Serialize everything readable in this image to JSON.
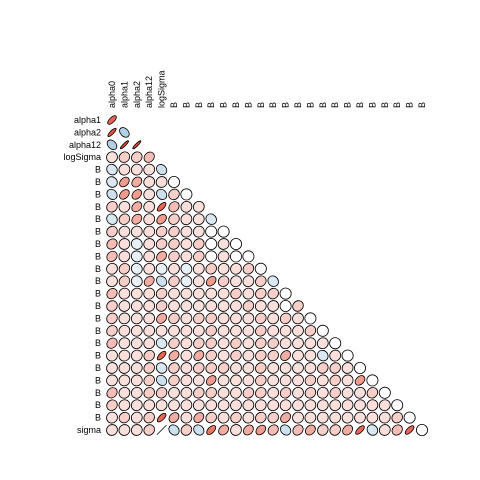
{
  "chart_data": {
    "type": "heatmap",
    "subtype": "lower-triangular correlation ellipse matrix",
    "column_labels": [
      "alpha0",
      "alpha1",
      "alpha2",
      "alpha12",
      "logSigma",
      "B",
      "B",
      "B",
      "B",
      "B",
      "B",
      "B",
      "B",
      "B",
      "B",
      "B",
      "B",
      "B",
      "B",
      "B",
      "B",
      "B",
      "B",
      "B",
      "B",
      "B"
    ],
    "row_labels": [
      "alpha1",
      "alpha2",
      "alpha12",
      "logSigma",
      "B",
      "B",
      "B",
      "B",
      "B",
      "B",
      "B",
      "B",
      "B",
      "B",
      "B",
      "B",
      "B",
      "B",
      "B",
      "B",
      "B",
      "B",
      "B",
      "B",
      "B",
      "sigma"
    ],
    "correlations": [
      [
        0.8
      ],
      [
        0.9,
        -0.5
      ],
      [
        -0.5,
        0.95,
        0.95
      ],
      [
        0.1,
        0.2,
        0.2,
        0.3
      ],
      [
        -0.2,
        0.1,
        0.1,
        0.1,
        -0.3
      ],
      [
        -0.2,
        0.5,
        0.4,
        0.1,
        0.1,
        0.0
      ],
      [
        -0.3,
        0.5,
        0.5,
        0.1,
        -0.3,
        0.2,
        0.0
      ],
      [
        0.2,
        0.1,
        0.4,
        0.1,
        0.8,
        0.3,
        0.1,
        0.1
      ],
      [
        -0.2,
        0.2,
        0.4,
        0.1,
        0.5,
        0.2,
        0.1,
        0.1,
        -0.2
      ],
      [
        0.2,
        0.1,
        0.1,
        0.1,
        0.2,
        0.2,
        0.1,
        0.1,
        0.0,
        0.0
      ],
      [
        0.3,
        0.1,
        -0.1,
        0.1,
        0.2,
        0.2,
        0.1,
        0.2,
        0.0,
        0.1,
        0.0
      ],
      [
        0.3,
        0.1,
        -0.1,
        0.1,
        0.4,
        0.2,
        0.1,
        0.2,
        0.0,
        0.1,
        0.0,
        0.0
      ],
      [
        0.1,
        0.2,
        -0.1,
        0.1,
        -0.1,
        0.1,
        -0.1,
        0.1,
        0.2,
        0.1,
        0.1,
        0.2,
        0.0
      ],
      [
        0.1,
        0.2,
        -0.1,
        0.4,
        -0.3,
        0.2,
        -0.1,
        0.1,
        0.5,
        0.2,
        0.1,
        0.1,
        0.2,
        -0.2
      ],
      [
        0.3,
        0.1,
        0.1,
        0.1,
        0.2,
        0.1,
        0.1,
        0.1,
        0.1,
        0.1,
        0.2,
        0.1,
        0.2,
        0.2,
        0.0
      ],
      [
        0.2,
        0.1,
        0.1,
        0.1,
        0.2,
        0.1,
        0.1,
        0.1,
        0.1,
        0.1,
        0.1,
        0.2,
        0.1,
        0.1,
        0.0,
        0.2
      ],
      [
        0.2,
        0.1,
        0.1,
        0.1,
        0.4,
        0.2,
        0.1,
        0.2,
        0.2,
        0.1,
        0.1,
        0.1,
        0.2,
        0.1,
        0.2,
        0.1,
        0.0
      ],
      [
        0.2,
        0.1,
        0.1,
        0.1,
        0.1,
        0.1,
        0.1,
        0.1,
        0.2,
        0.1,
        0.1,
        0.1,
        0.2,
        0.1,
        0.1,
        0.1,
        0.2,
        0.0
      ],
      [
        0.3,
        0.1,
        0.1,
        0.1,
        -0.2,
        0.2,
        0.1,
        0.2,
        0.2,
        0.1,
        0.2,
        0.1,
        0.2,
        0.2,
        0.1,
        0.1,
        0.1,
        0.1,
        0.0
      ],
      [
        0.1,
        0.1,
        0.1,
        0.2,
        0.8,
        0.4,
        0.1,
        0.4,
        0.2,
        0.1,
        0.2,
        0.1,
        0.2,
        0.2,
        0.4,
        0.1,
        0.1,
        -0.2,
        0.1,
        0.0
      ],
      [
        0.1,
        0.1,
        0.1,
        0.2,
        -0.2,
        0.2,
        0.1,
        0.2,
        0.2,
        0.2,
        0.1,
        0.1,
        0.2,
        0.1,
        0.1,
        0.1,
        0.1,
        0.2,
        0.2,
        0.1,
        0.0
      ],
      [
        0.1,
        0.1,
        0.1,
        0.2,
        -0.3,
        0.2,
        0.1,
        0.1,
        0.5,
        0.1,
        0.1,
        0.1,
        0.2,
        0.1,
        0.1,
        0.1,
        0.2,
        0.1,
        0.2,
        0.1,
        0.5,
        0.0
      ],
      [
        0.3,
        0.1,
        0.1,
        0.2,
        0.2,
        0.1,
        0.1,
        0.2,
        0.2,
        0.1,
        0.1,
        0.2,
        0.2,
        0.1,
        0.2,
        0.1,
        0.2,
        0.1,
        0.2,
        0.1,
        0.1,
        0.2,
        0.0
      ],
      [
        0.2,
        0.1,
        0.1,
        0.1,
        0.1,
        0.1,
        0.1,
        0.1,
        0.1,
        0.1,
        0.1,
        0.1,
        0.1,
        0.1,
        0.1,
        0.1,
        0.1,
        0.1,
        0.1,
        0.1,
        0.1,
        0.1,
        0.1,
        0.0
      ],
      [
        0.1,
        0.2,
        0.1,
        0.2,
        0.8,
        0.4,
        0.1,
        0.4,
        0.2,
        0.1,
        0.2,
        0.1,
        0.2,
        0.2,
        0.4,
        0.1,
        0.1,
        0.1,
        0.1,
        0.1,
        0.1,
        0.1,
        0.1,
        0.2,
        0.0
      ],
      [
        0.1,
        0.1,
        0.1,
        0.2,
        0.99,
        -0.3,
        0.2,
        -0.3,
        0.7,
        0.4,
        0.1,
        0.4,
        0.5,
        0.3,
        -0.3,
        0.3,
        0.4,
        0.2,
        0.2,
        0.4,
        0.8,
        -0.2,
        0.1,
        0.3,
        0.8,
        0.0
      ]
    ],
    "color_scale": {
      "positive": "#e34a33",
      "negative": "#74a9cf",
      "neutral": "#ffffff"
    }
  }
}
